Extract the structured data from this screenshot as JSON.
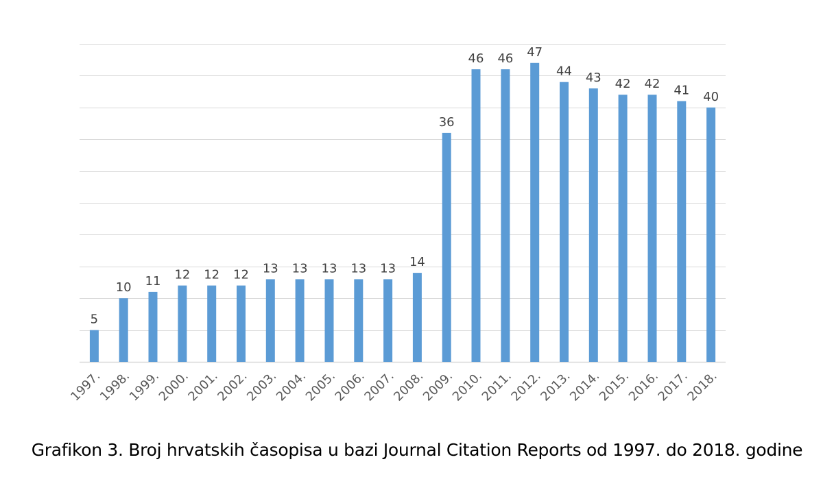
{
  "chart_data": {
    "type": "bar",
    "title": "",
    "xlabel": "",
    "ylabel": "",
    "categories": [
      "1997.",
      "1998.",
      "1999.",
      "2000.",
      "2001.",
      "2002.",
      "2003.",
      "2004.",
      "2005.",
      "2006.",
      "2007.",
      "2008.",
      "2009.",
      "2010.",
      "2011.",
      "2012.",
      "2013.",
      "2014.",
      "2015.",
      "2016.",
      "2017.",
      "2018."
    ],
    "values": [
      5,
      10,
      11,
      12,
      12,
      12,
      13,
      13,
      13,
      13,
      13,
      14,
      36,
      46,
      46,
      47,
      44,
      43,
      42,
      42,
      41,
      40
    ],
    "ylim": [
      0,
      50
    ],
    "ytick_step": 5,
    "grid": true,
    "bar_color": "#5B9BD5",
    "grid_color": "#D9D9D9"
  },
  "caption": "Grafikon 3. Broj hrvatskih časopisa u bazi Journal Citation Reports od 1997. do 2018. godine"
}
